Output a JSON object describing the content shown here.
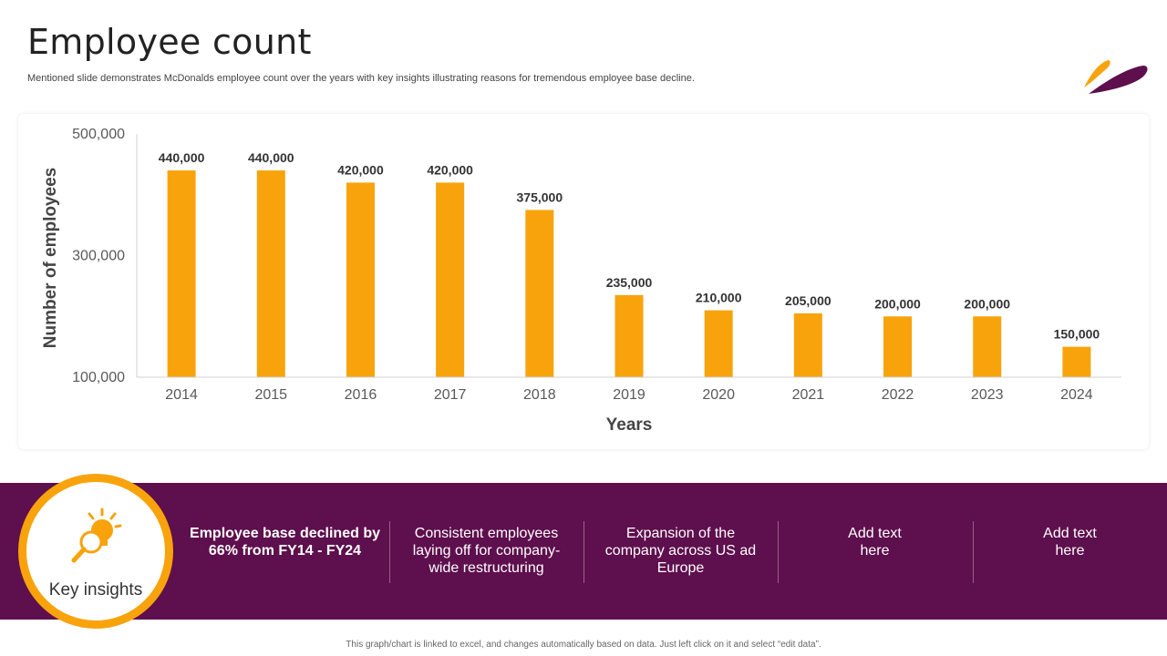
{
  "header": {
    "title": "Employee count",
    "subtitle": "Mentioned slide demonstrates McDonalds employee count over the years with key insights illustrating reasons for tremendous employee base decline."
  },
  "colors": {
    "bar": "#f8a30c",
    "band": "#5e0f4d",
    "logo_orange": "#f8a30c",
    "logo_purple": "#5e0f4d"
  },
  "chart_data": {
    "type": "bar",
    "title": "",
    "xlabel": "Years",
    "ylabel": "Number of employees",
    "categories": [
      "2014",
      "2015",
      "2016",
      "2017",
      "2018",
      "2019",
      "2020",
      "2021",
      "2022",
      "2023",
      "2024"
    ],
    "values": [
      440000,
      440000,
      420000,
      420000,
      375000,
      235000,
      210000,
      205000,
      200000,
      200000,
      150000
    ],
    "data_labels": [
      "440,000",
      "440,000",
      "420,000",
      "420,000",
      "375,000",
      "235,000",
      "210,000",
      "205,000",
      "200,000",
      "200,000",
      "150,000"
    ],
    "ylim": [
      100000,
      500000
    ],
    "yticks": [
      100000,
      300000,
      500000
    ],
    "ytick_labels": [
      "100,000",
      "300,000",
      "500,000"
    ],
    "grid": false
  },
  "insights": {
    "heading": "Key insights",
    "icon": "lightbulb-magnifier-icon",
    "items": [
      "Employee base declined by 66% from FY14 - FY24",
      "Consistent employees laying off for company-wide restructuring",
      "Expansion of the company across US ad Europe",
      "Add text here",
      "Add text here"
    ]
  },
  "footnote": "This graph/chart is linked to excel, and changes automatically based on data. Just left click on it and select “edit data”."
}
